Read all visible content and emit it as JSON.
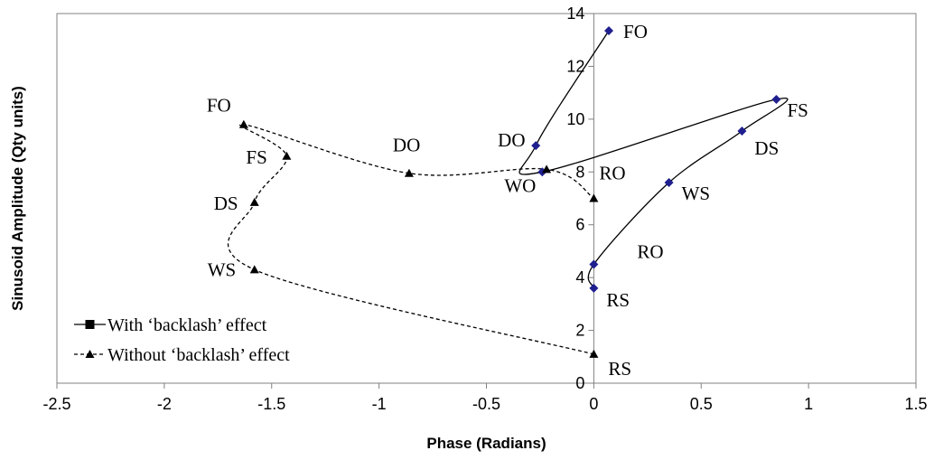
{
  "chart_data": {
    "type": "line",
    "xlabel": "Phase (Radians)",
    "ylabel": "Sinusoid Amplitude (Qty units)",
    "xlim": [
      -2.5,
      1.5
    ],
    "ylim": [
      0,
      14
    ],
    "x_ticks": [
      "-2.5",
      "-2",
      "-1.5",
      "-1",
      "-0.5",
      "0",
      "0.5",
      "1",
      "1.5"
    ],
    "y_ticks": [
      "0",
      "2",
      "4",
      "6",
      "8",
      "10",
      "12",
      "14"
    ],
    "legend_position": "bottom-left",
    "grid": false,
    "series": [
      {
        "name": "With ‘backlash’ effect",
        "marker": "diamond",
        "marker_color": "#1f1f8f",
        "line_style": "solid",
        "points": [
          {
            "label": "RS",
            "x": 0.0,
            "y": 3.6
          },
          {
            "label": "RO",
            "x": 0.0,
            "y": 4.5
          },
          {
            "label": "WS",
            "x": 0.35,
            "y": 7.6
          },
          {
            "label": "DS",
            "x": 0.69,
            "y": 9.55
          },
          {
            "label": "FS",
            "x": 0.85,
            "y": 10.75
          },
          {
            "label": "WO",
            "x": -0.24,
            "y": 8.0
          },
          {
            "label": "DO",
            "x": -0.27,
            "y": 9.0
          },
          {
            "label": "FO",
            "x": 0.07,
            "y": 13.35
          }
        ]
      },
      {
        "name": "Without ‘backlash’ effect",
        "marker": "triangle",
        "marker_color": "#000000",
        "line_style": "dashed",
        "points": [
          {
            "label": "RS",
            "x": 0.0,
            "y": 1.1
          },
          {
            "label": "WS",
            "x": -1.58,
            "y": 4.3
          },
          {
            "label": "DS",
            "x": -1.58,
            "y": 6.85
          },
          {
            "label": "FS",
            "x": -1.43,
            "y": 8.6
          },
          {
            "label": "FO",
            "x": -1.63,
            "y": 9.8
          },
          {
            "label": "DO",
            "x": -0.86,
            "y": 7.95
          },
          {
            "label": "",
            "x": -0.22,
            "y": 8.1
          },
          {
            "label": "RO",
            "x": 0.0,
            "y": 7.0
          }
        ]
      }
    ]
  }
}
